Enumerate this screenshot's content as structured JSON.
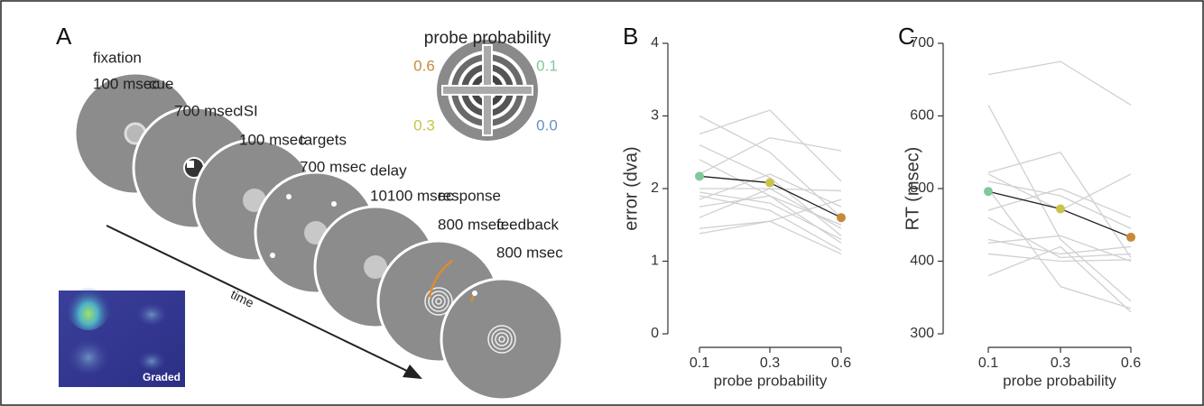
{
  "diagram": {
    "panel_label": "A",
    "steps": [
      {
        "name": "fixation",
        "duration": "100 msec"
      },
      {
        "name": "cue",
        "duration": "700 msec"
      },
      {
        "name": "ISI",
        "duration": "100 msec"
      },
      {
        "name": "targets",
        "duration": "700 msec"
      },
      {
        "name": "delay",
        "duration": "10100 msec"
      },
      {
        "name": "response",
        "duration": "800 msec"
      },
      {
        "name": "feedback",
        "duration": "800 msec"
      }
    ],
    "probe_title": "probe probability",
    "probe_labels": [
      "0.6",
      "0.1",
      "0.3",
      "0.0"
    ],
    "time_label": "time",
    "inset_label": "Graded"
  },
  "chart_data": [
    {
      "type": "line",
      "panel_label": "B",
      "y_label": "error (dva)",
      "x_label": "probe probability",
      "categories": [
        "0.1",
        "0.3",
        "0.6"
      ],
      "ylim": [
        0,
        4
      ],
      "yticks": [
        0,
        1,
        2,
        3,
        4
      ],
      "subject_color": "#d0d0d0",
      "mean_line_color": "#222222",
      "mean_colors": [
        "#7fc99a",
        "#c8c44a",
        "#c9883a"
      ],
      "mean_values": [
        2.17,
        2.08,
        1.6
      ],
      "subject_values": [
        [
          3.0,
          2.5,
          1.6
        ],
        [
          2.75,
          3.08,
          2.1
        ],
        [
          2.6,
          2.15,
          1.35
        ],
        [
          2.4,
          1.9,
          1.5
        ],
        [
          2.2,
          2.7,
          2.52
        ],
        [
          2.0,
          2.0,
          1.97
        ],
        [
          1.9,
          1.7,
          1.15
        ],
        [
          1.85,
          2.2,
          1.75
        ],
        [
          1.75,
          1.9,
          1.25
        ],
        [
          1.6,
          2.0,
          1.45
        ],
        [
          1.45,
          1.55,
          1.1
        ],
        [
          1.38,
          1.55,
          1.85
        ],
        [
          1.95,
          1.8,
          1.3
        ]
      ]
    },
    {
      "type": "line",
      "panel_label": "C",
      "y_label": "RT (msec)",
      "x_label": "probe probability",
      "categories": [
        "0.1",
        "0.3",
        "0.6"
      ],
      "ylim": [
        300,
        700
      ],
      "yticks": [
        300,
        400,
        500,
        600,
        700
      ],
      "subject_color": "#d0d0d0",
      "mean_line_color": "#222222",
      "mean_colors": [
        "#7fc99a",
        "#c8c44a",
        "#c9883a"
      ],
      "mean_values": [
        496,
        472,
        433
      ],
      "subject_values": [
        [
          657,
          675,
          615
        ],
        [
          615,
          430,
          345
        ],
        [
          522,
          550,
          405
        ],
        [
          520,
          470,
          520
        ],
        [
          510,
          490,
          445
        ],
        [
          470,
          500,
          460
        ],
        [
          460,
          405,
          410
        ],
        [
          430,
          410,
          420
        ],
        [
          425,
          435,
          400
        ],
        [
          410,
          400,
          402
        ],
        [
          380,
          420,
          330
        ],
        [
          500,
          365,
          335
        ]
      ]
    }
  ]
}
